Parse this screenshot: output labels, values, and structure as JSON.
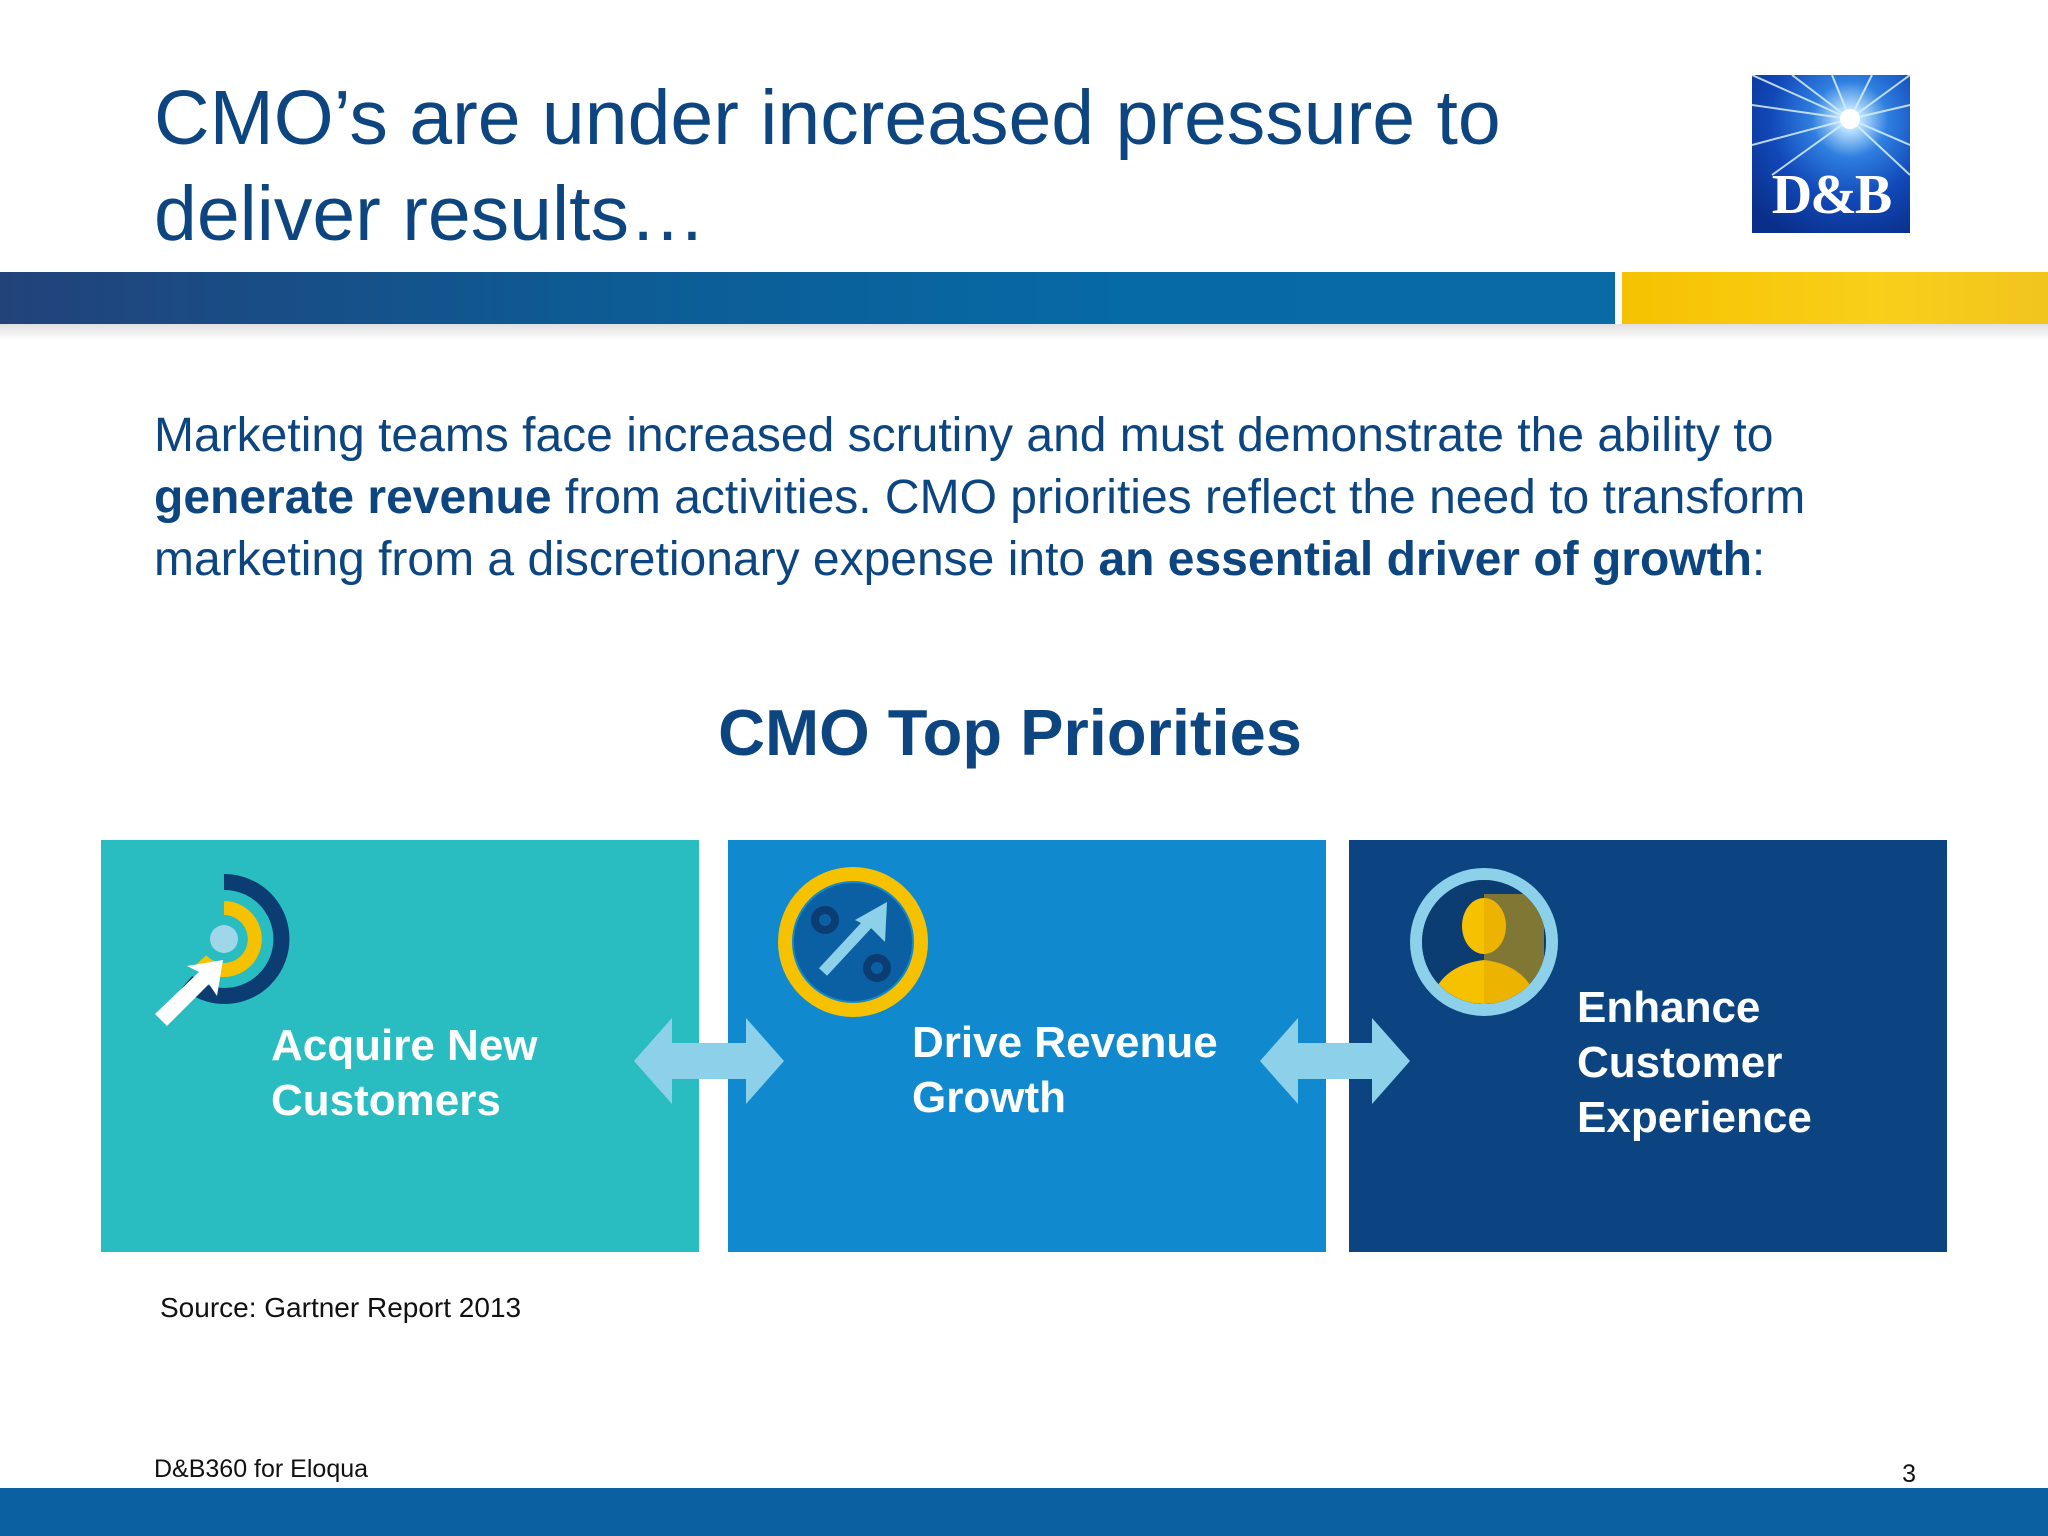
{
  "slide": {
    "title_line1": "CMO’s are under increased pressure to",
    "title_line2": "deliver results…",
    "logo_text": "D&B"
  },
  "intro": {
    "p1": "Marketing teams face increased scrutiny and must demonstrate the ability to ",
    "b1": "generate revenue",
    "p2": " from activities. CMO priorities reflect the need to transform marketing from a discretionary expense into ",
    "b2": "an essential driver of growth",
    "p3": ":"
  },
  "priorities": {
    "title": "CMO Top Priorities",
    "items": [
      {
        "line1": "Acquire New",
        "line2": "Customers",
        "icon": "target-arrow-icon"
      },
      {
        "line1": "Drive Revenue",
        "line2": "Growth",
        "icon": "percent-growth-icon"
      },
      {
        "line1": "Enhance",
        "line2": "Customer",
        "line3": "Experience",
        "icon": "person-icon"
      }
    ]
  },
  "source": "Source: Gartner Report 2013",
  "footer": {
    "text": "D&B360 for Eloqua",
    "page": "3"
  },
  "colors": {
    "title": "#0d4580",
    "teal": "#29bcc0",
    "blue": "#1189cf",
    "navy": "#0b4480",
    "gold": "#f6c200",
    "arrow": "#8dd0ea"
  }
}
